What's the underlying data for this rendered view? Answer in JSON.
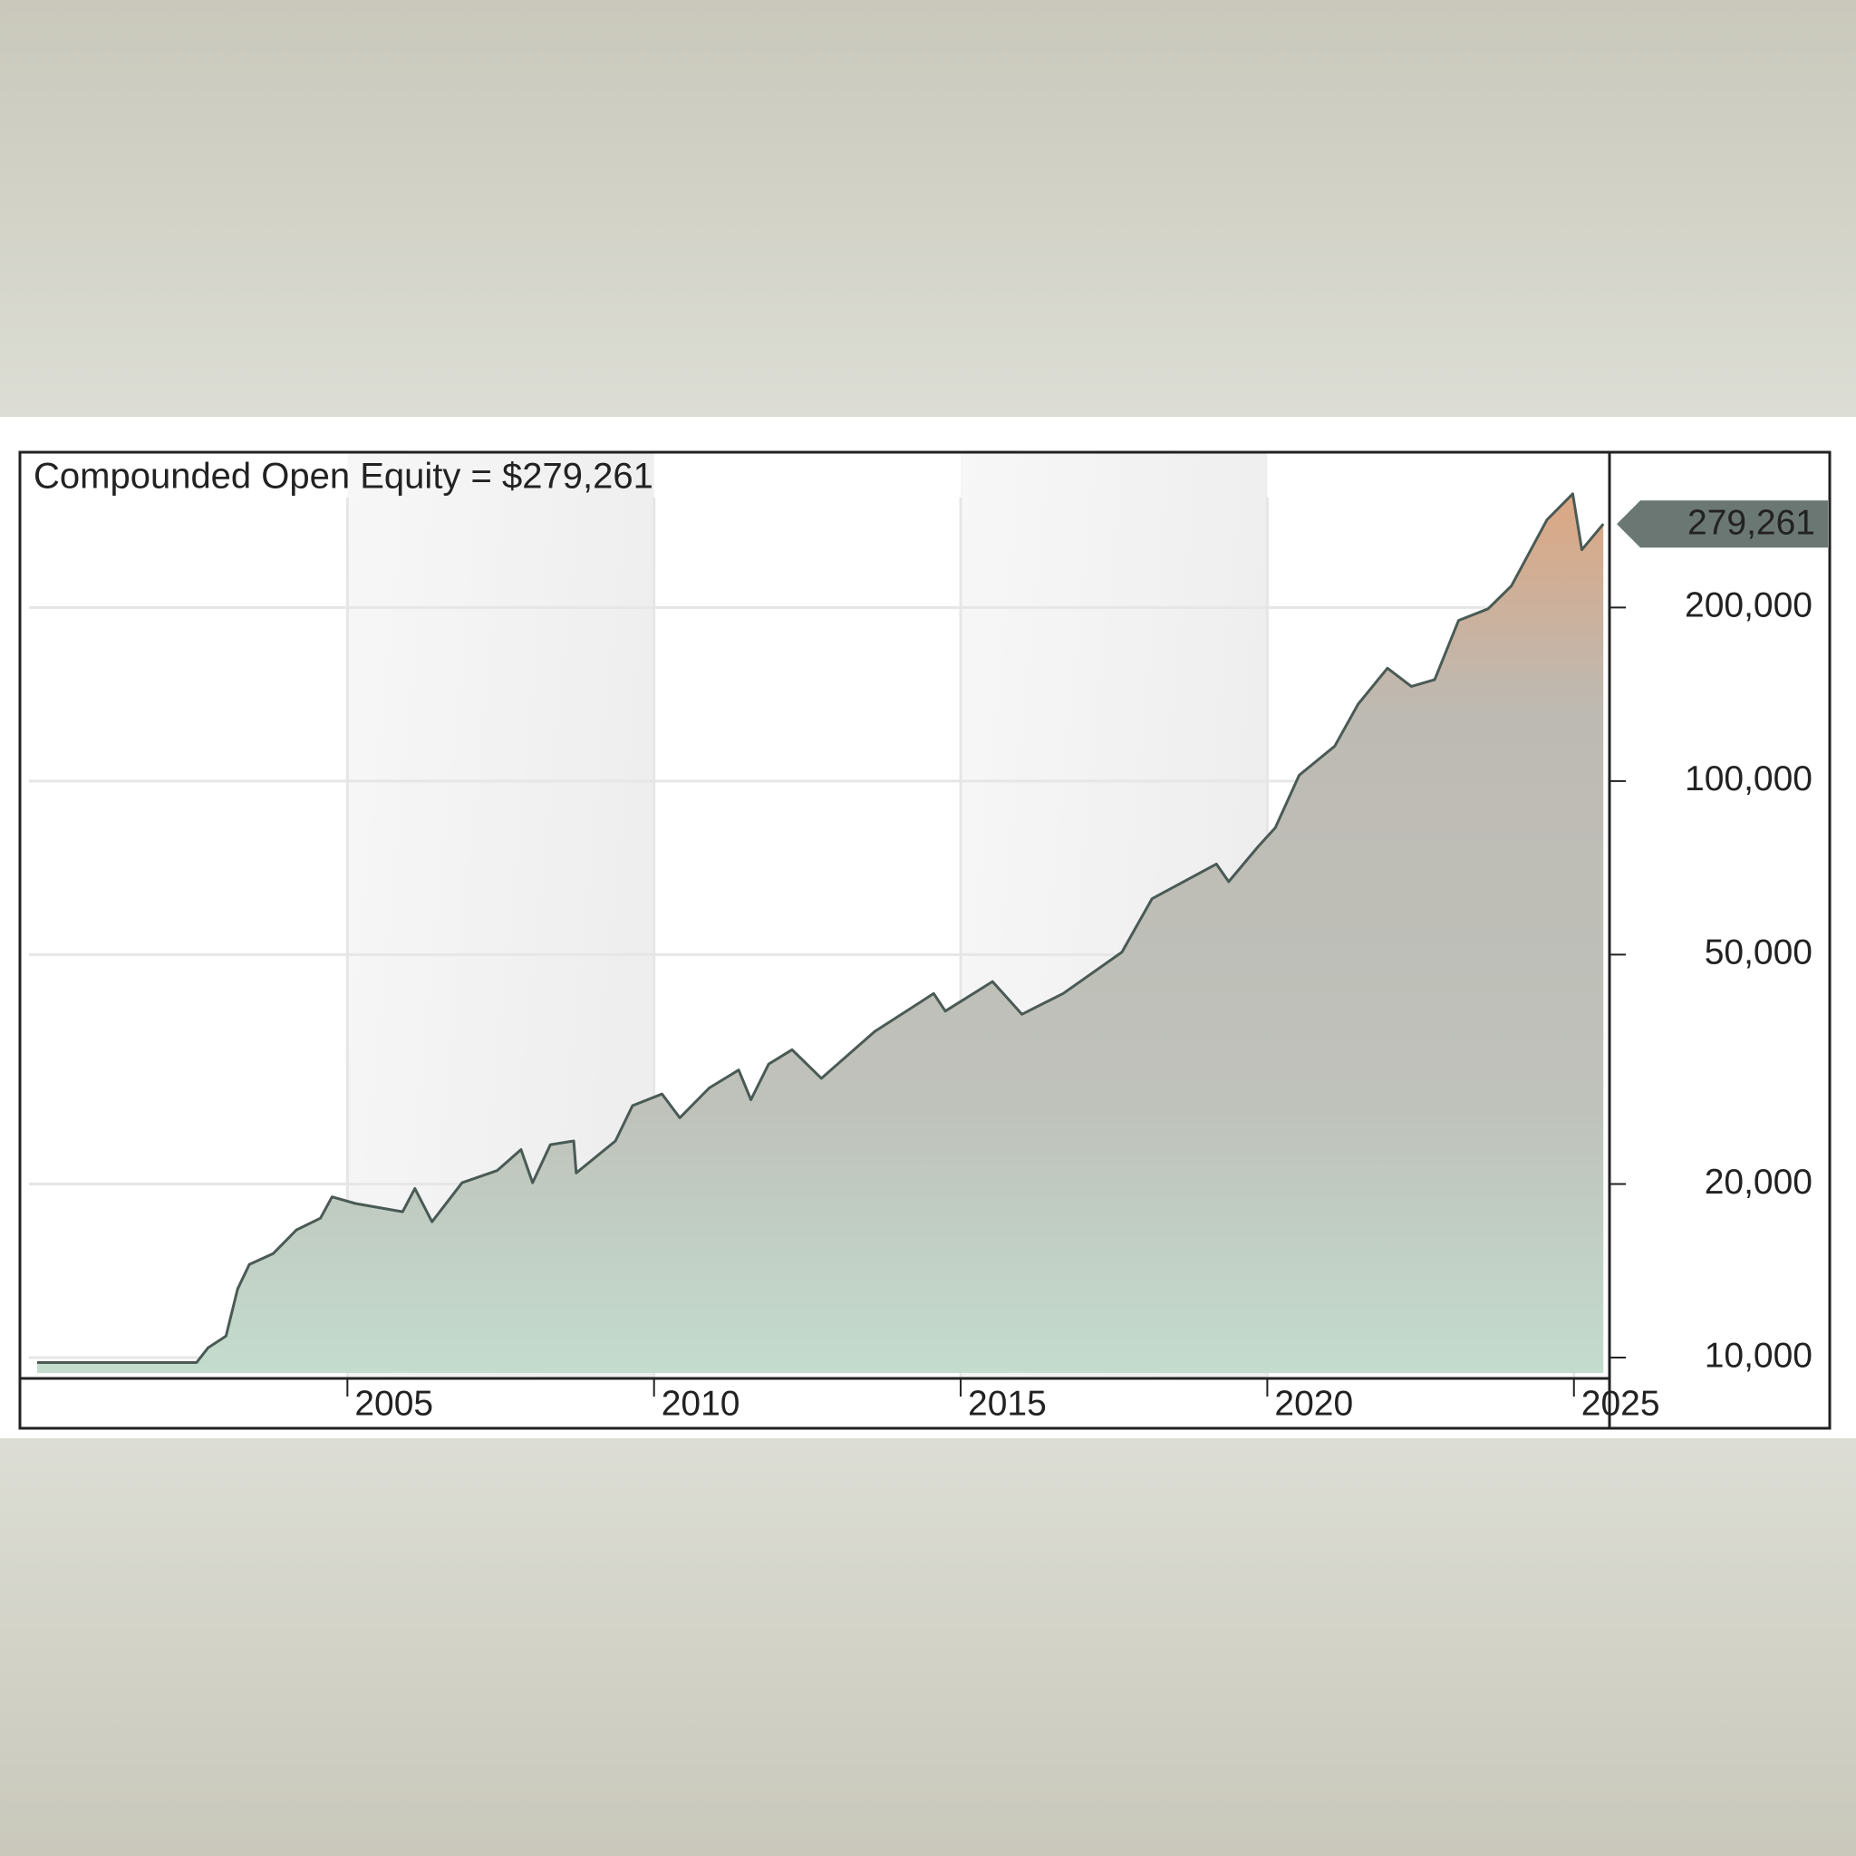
{
  "chart_data": {
    "type": "area",
    "title": "Compounded Open Equity = $279,261",
    "log_y": true,
    "grid": true,
    "x": [
      1999.94,
      2002.54,
      2002.73,
      2003.02,
      2003.21,
      2003.4,
      2003.79,
      2004.17,
      2004.56,
      2004.75,
      2005.13,
      2005.9,
      2006.1,
      2006.38,
      2006.87,
      2007.44,
      2007.83,
      2008.02,
      2008.31,
      2008.69,
      2008.73,
      2009.37,
      2009.65,
      2010.13,
      2010.42,
      2010.9,
      2011.38,
      2011.58,
      2011.87,
      2012.25,
      2012.73,
      2013.6,
      2014.56,
      2014.75,
      2015.52,
      2016.0,
      2016.67,
      2017.63,
      2018.12,
      2019.17,
      2019.37,
      2019.85,
      2020.13,
      2020.52,
      2021.1,
      2021.48,
      2021.96,
      2022.35,
      2022.73,
      2023.12,
      2023.6,
      2023.98,
      2024.56,
      2024.98,
      2025.13,
      2025.48
    ],
    "series": [
      {
        "color": "#4a5a55",
        "values": [
          9800,
          9800,
          10400,
          10900,
          13150,
          14500,
          15150,
          16650,
          17450,
          19000,
          18500,
          17900,
          19650,
          17200,
          20100,
          21100,
          22950,
          20100,
          23400,
          23750,
          20900,
          23750,
          27350,
          28650,
          26060,
          29350,
          31530,
          28000,
          32300,
          34200,
          30500,
          36800,
          42800,
          39900,
          44900,
          39400,
          42800,
          50500,
          62500,
          71800,
          66900,
          77000,
          83000,
          102400,
          115000,
          136000,
          157000,
          146000,
          150000,
          190000,
          199000,
          218000,
          284000,
          315000,
          252000,
          279261
        ]
      }
    ],
    "current_value_label": {
      "value": 279261,
      "label": "279,261"
    },
    "xlim": [
      1999.66,
      2025.58
    ],
    "xticks": [
      2005,
      2010,
      2015,
      2020,
      2025
    ],
    "ylim": [
      9200,
      372000
    ],
    "yticks": [
      {
        "value": 10000,
        "label": "10,000"
      },
      {
        "value": 20000,
        "label": "20,000"
      },
      {
        "value": 50000,
        "label": "50,000"
      },
      {
        "value": 100000,
        "label": "100,000"
      },
      {
        "value": 200000,
        "label": "200,000"
      }
    ]
  }
}
